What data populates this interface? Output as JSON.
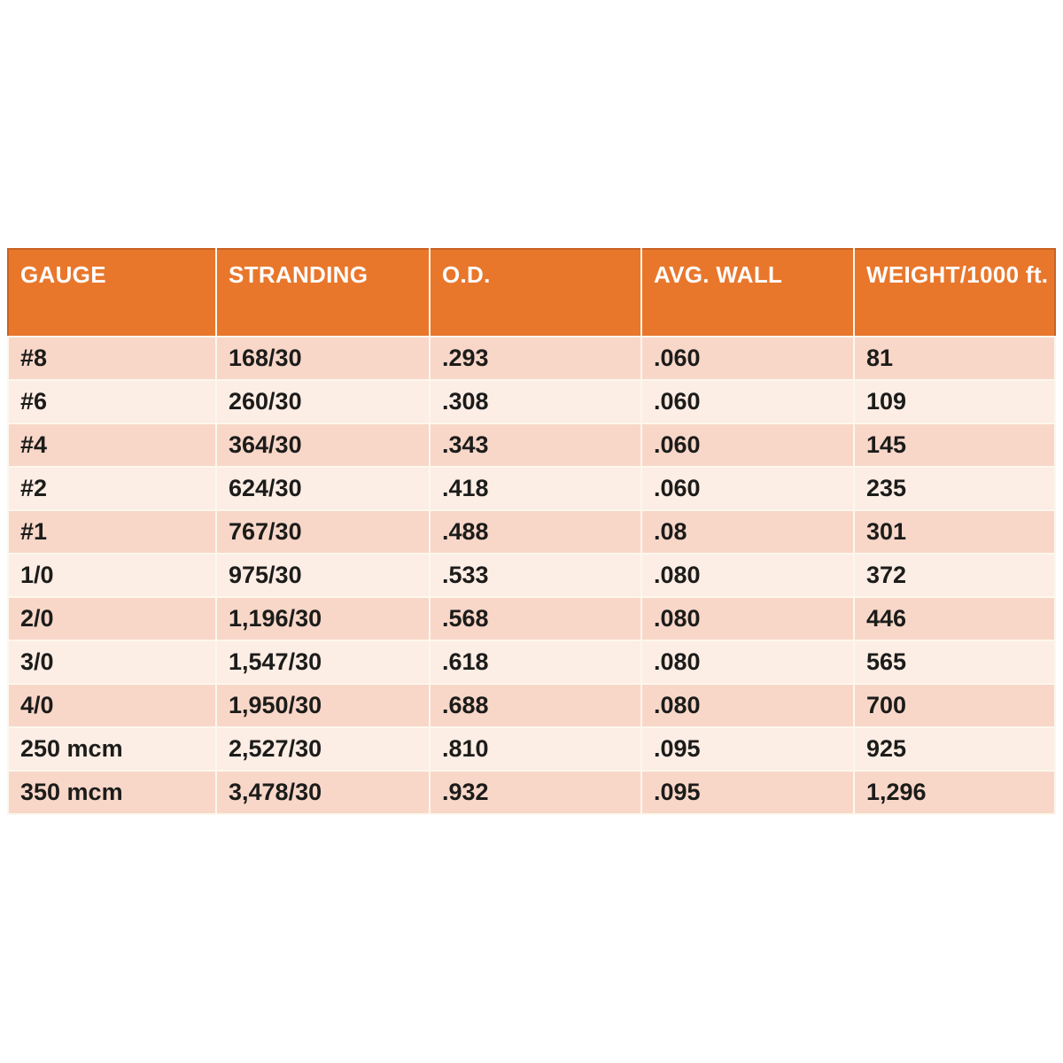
{
  "colors": {
    "page_bg": "#ffffff",
    "header_bg": "#e8772c",
    "header_edge": "#c96223",
    "header_text": "#fefefe",
    "row_dark": "#f8d7c9",
    "row_light": "#fcede5",
    "grid_line": "#fcf7ec",
    "cell_text": "#1c1c1a"
  },
  "table": {
    "headers": [
      "GAUGE",
      "STRANDING",
      "O.D.",
      "AVG. WALL",
      "WEIGHT/1000 ft."
    ],
    "rows": [
      [
        "#8",
        "168/30",
        ".293",
        ".060",
        "81"
      ],
      [
        "#6",
        "260/30",
        ".308",
        ".060",
        "109"
      ],
      [
        "#4",
        "364/30",
        ".343",
        ".060",
        "145"
      ],
      [
        "#2",
        "624/30",
        ".418",
        ".060",
        "235"
      ],
      [
        "#1",
        "767/30",
        ".488",
        ".08",
        "301"
      ],
      [
        "1/0",
        "975/30",
        ".533",
        ".080",
        "372"
      ],
      [
        "2/0",
        "1,196/30",
        ".568",
        ".080",
        "446"
      ],
      [
        "3/0",
        "1,547/30",
        ".618",
        ".080",
        "565"
      ],
      [
        "4/0",
        "1,950/30",
        ".688",
        ".080",
        "700"
      ],
      [
        "250 mcm",
        "2,527/30",
        ".810",
        ".095",
        "925"
      ],
      [
        "350 mcm",
        "3,478/30",
        ".932",
        ".095",
        "1,296"
      ]
    ]
  },
  "chart_data": {
    "type": "table",
    "title": "",
    "columns": [
      "GAUGE",
      "STRANDING",
      "O.D.",
      "AVG. WALL",
      "WEIGHT/1000 ft."
    ],
    "rows": [
      [
        "#8",
        "168/30",
        0.293,
        0.06,
        81
      ],
      [
        "#6",
        "260/30",
        0.308,
        0.06,
        109
      ],
      [
        "#4",
        "364/30",
        0.343,
        0.06,
        145
      ],
      [
        "#2",
        "624/30",
        0.418,
        0.06,
        235
      ],
      [
        "#1",
        "767/30",
        0.488,
        0.08,
        301
      ],
      [
        "1/0",
        "975/30",
        0.533,
        0.08,
        372
      ],
      [
        "2/0",
        "1,196/30",
        0.568,
        0.08,
        446
      ],
      [
        "3/0",
        "1,547/30",
        0.618,
        0.08,
        565
      ],
      [
        "4/0",
        "1,950/30",
        0.688,
        0.08,
        700
      ],
      [
        "250 mcm",
        "2,527/30",
        0.81,
        0.095,
        925
      ],
      [
        "350 mcm",
        "3,478/30",
        0.932,
        0.095,
        1296
      ]
    ],
    "legend_position": "none",
    "grid": true
  }
}
